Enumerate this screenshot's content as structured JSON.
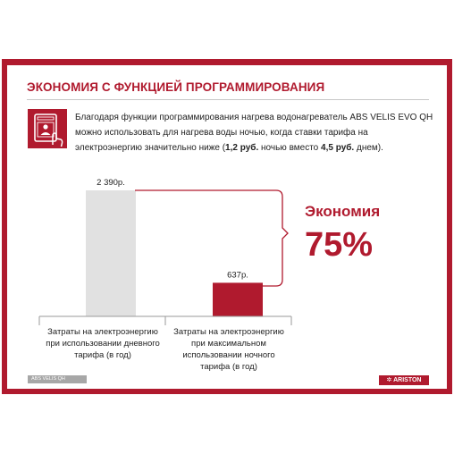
{
  "slide": {
    "title": "ЭКОНОМИЯ С ФУНКЦИЕЙ ПРОГРАММИРОВАНИЯ",
    "desc_part1": "Благодаря функции программирования нагрева водонагреватель ABS VELIS EVO QH можно использовать для нагрева воды ночью, когда ставки тарифа на электроэнергию значительно ниже (",
    "desc_night": "1,2 руб.",
    "desc_part2": " ночью вместо ",
    "desc_day": "4,5 руб.",
    "desc_part3": " днем).",
    "saving_label": "Экономия",
    "saving_value": "75%"
  },
  "footer": {
    "product": "ABS VELIS QH",
    "brand": "ARISTON"
  },
  "icon": "hand-touch-panel-icon",
  "colors": {
    "accent": "#b01a2e",
    "day_bar": "#e1e1e1",
    "night_bar": "#b01a2e"
  },
  "chart_data": {
    "type": "bar",
    "categories": [
      "Затраты на электроэнергию при использовании дневного тарифа (в год)",
      "Затраты на электроэнергию при максимальном использовании ночного тарифа (в год)"
    ],
    "values": [
      2390,
      637
    ],
    "value_labels": [
      "2 390р.",
      "637р."
    ],
    "ylim": [
      0,
      2390
    ]
  }
}
